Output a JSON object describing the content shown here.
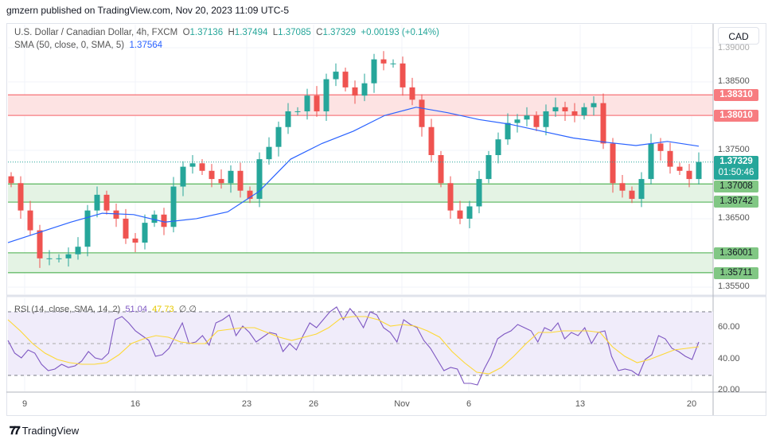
{
  "header": {
    "published": "gmzern published on TradingView.com, Nov 20, 2023 11:09 UTC-5"
  },
  "legend": {
    "symbol": "U.S. Dollar / Canadian Dollar, 4h, FXCM",
    "o_label": "O",
    "o": "1.37136",
    "h_label": "H",
    "h": "1.37494",
    "l_label": "L",
    "l": "1.37085",
    "c_label": "C",
    "c": "1.37329",
    "change": "+0.00193 (+0.14%)",
    "sma_label": "SMA (50, close, 0, SMA, 5)",
    "sma_value": "1.37564"
  },
  "rsi_legend": {
    "label": "RSI (14, close, SMA, 14, 2)",
    "rsi": "51.04",
    "rsi_sma": "47.73",
    "extra": "∅ ∅"
  },
  "currency_button": "CAD",
  "price_ticks": [
    "1.39000",
    "1.38500",
    "1.37500",
    "1.36500",
    "1.35500"
  ],
  "rsi_ticks": [
    "60.00",
    "40.00",
    "20.00"
  ],
  "badges": {
    "r1": "1.38310",
    "r2": "1.38010",
    "price": "1.37329",
    "countdown": "01:50:46",
    "s1": "1.37008",
    "s2": "1.36742",
    "s3": "1.36001",
    "s4": "1.35711"
  },
  "dates": [
    "9",
    "16",
    "23",
    "26",
    "Nov",
    "6",
    "13",
    "20"
  ],
  "footer": {
    "brand": "TradingView"
  },
  "colors": {
    "up": "#26a69a",
    "down": "#ef5350",
    "sma": "#2962ff",
    "rsi": "#7e57c2",
    "rsi_sma": "#fdd835",
    "resistance": "#f77c80",
    "support": "#81c784"
  },
  "chart_data": {
    "type": "candlestick",
    "ylim": [
      1.3545,
      1.3905
    ],
    "zones": {
      "resistance": [
        1.3801,
        1.3831
      ],
      "support1": [
        1.36742,
        1.37008
      ],
      "support2": [
        1.35711,
        1.36001
      ]
    },
    "last_price": 1.37329,
    "closes": [
      1.3702,
      1.3662,
      1.3633,
      1.3592,
      1.3592,
      1.3592,
      1.3598,
      1.3609,
      1.3662,
      1.3685,
      1.3662,
      1.365,
      1.3621,
      1.3615,
      1.3644,
      1.3656,
      1.3638,
      1.3697,
      1.3726,
      1.3731,
      1.372,
      1.3708,
      1.3702,
      1.372,
      1.3691,
      1.3679,
      1.3737,
      1.3755,
      1.3784,
      1.3807,
      1.3807,
      1.383,
      1.3807,
      1.3854,
      1.3865,
      1.3842,
      1.383,
      1.3848,
      1.3883,
      1.3877,
      1.3877,
      1.3842,
      1.3824,
      1.3784,
      1.3743,
      1.3702,
      1.3662,
      1.365,
      1.3668,
      1.3708,
      1.3743,
      1.3766,
      1.379,
      1.3795,
      1.3801,
      1.3784,
      1.3807,
      1.3813,
      1.3807,
      1.3801,
      1.3813,
      1.3819,
      1.376,
      1.3702,
      1.3691,
      1.3679,
      1.3708,
      1.376,
      1.3749,
      1.3726,
      1.372,
      1.3708,
      1.3733
    ],
    "sma50": [
      1.3615,
      1.363,
      1.3645,
      1.3658,
      1.3656,
      1.3645,
      1.365,
      1.366,
      1.369,
      1.3737,
      1.376,
      1.3778,
      1.3801,
      1.3813,
      1.3805,
      1.3795,
      1.3788,
      1.3778,
      1.3768,
      1.3762,
      1.3757,
      1.3763,
      1.3756
    ],
    "rsi": [
      52,
      44,
      41,
      46,
      44,
      37,
      33,
      34,
      37,
      35,
      36,
      39,
      45,
      41,
      40,
      44,
      65,
      67,
      63,
      58,
      55,
      52,
      42,
      43,
      47,
      55,
      63,
      50,
      51,
      55,
      49,
      63,
      65,
      68,
      55,
      61,
      57,
      51,
      54,
      57,
      56,
      45,
      50,
      46,
      55,
      63,
      60,
      65,
      70,
      73,
      65,
      72,
      67,
      60,
      70,
      68,
      60,
      57,
      51,
      65,
      62,
      60,
      52,
      47,
      40,
      33,
      35,
      34,
      25,
      25,
      24,
      34,
      42,
      53,
      56,
      58,
      62,
      60,
      58,
      51,
      60,
      58,
      63,
      53,
      57,
      55,
      60,
      50,
      57,
      58,
      42,
      33,
      34,
      33,
      30,
      40,
      43,
      55,
      53,
      47,
      45,
      42,
      40,
      51
    ],
    "rsi_sma": [
      65,
      58,
      50,
      44,
      40,
      38,
      37,
      37,
      38,
      43,
      50,
      53,
      55,
      54,
      51,
      50,
      50,
      58,
      59,
      60,
      60,
      57,
      54,
      52,
      54,
      56,
      60,
      66,
      67,
      67,
      65,
      61,
      62,
      61,
      58,
      54,
      45,
      38,
      32,
      31,
      35,
      42,
      50,
      57,
      57,
      58,
      58,
      58,
      57,
      48,
      42,
      38,
      40,
      43,
      46,
      47,
      48
    ],
    "rsi_levels": [
      70,
      50,
      30
    ]
  }
}
